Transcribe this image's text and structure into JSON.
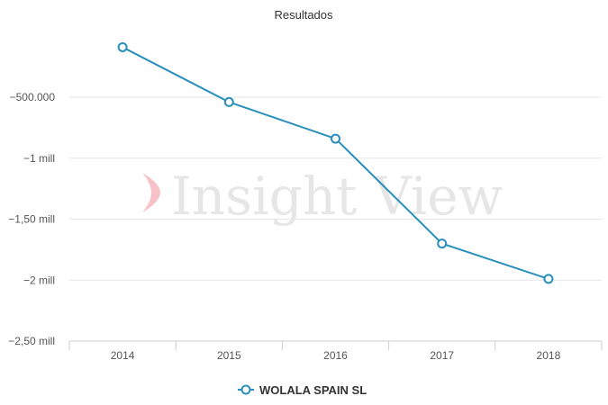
{
  "watermark": {
    "text": "Insight View"
  },
  "chart_data": {
    "type": "line",
    "title": "Resultados",
    "xlabel": "",
    "ylabel": "",
    "categories": [
      "2014",
      "2015",
      "2016",
      "2017",
      "2018"
    ],
    "series": [
      {
        "name": "WOLALA SPAIN SL",
        "color": "#2a8fbd",
        "values": [
          -90000,
          -540000,
          -840000,
          -1700000,
          -1990000
        ]
      }
    ],
    "ylim": [
      -2500000,
      -100000
    ],
    "yticks": [
      {
        "value": -500000,
        "label": "−500.000"
      },
      {
        "value": -1000000,
        "label": "−1 mill"
      },
      {
        "value": -1500000,
        "label": "−1,50 mill"
      },
      {
        "value": -2000000,
        "label": "−2 mill"
      },
      {
        "value": -2500000,
        "label": "−2,50 mill"
      }
    ],
    "grid": true,
    "legend": "bottom-center"
  }
}
